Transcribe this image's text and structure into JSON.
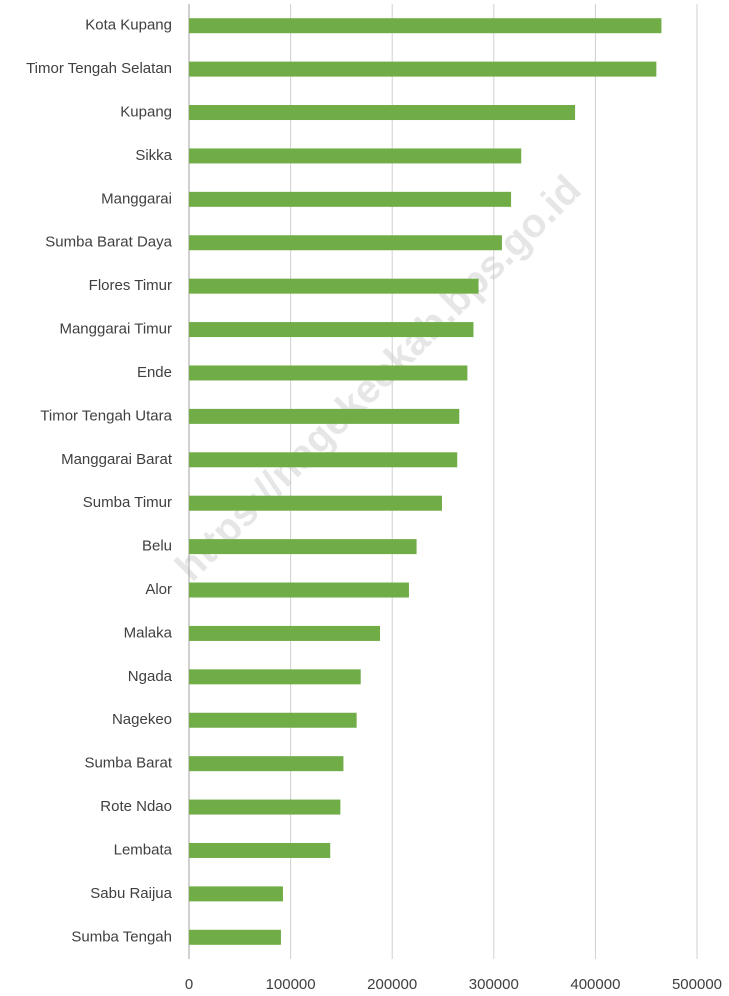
{
  "chart_data": {
    "type": "bar",
    "orientation": "horizontal",
    "watermark": "https://nagekeokab.bps.go.id",
    "categories": [
      "Kota Kupang",
      "Timor Tengah Selatan",
      "Kupang",
      "Sikka",
      "Manggarai",
      "Sumba Barat Daya",
      "Flores Timur",
      "Manggarai Timur",
      "Ende",
      "Timor Tengah Utara",
      "Manggarai Barat",
      "Sumba Timur",
      "Belu",
      "Alor",
      "Malaka",
      "Ngada",
      "Nagekeo",
      "Sumba Barat",
      "Rote Ndao",
      "Lembata",
      "Sabu Raijua",
      "Sumba Tengah"
    ],
    "values": [
      465000,
      460000,
      380000,
      327000,
      317000,
      308000,
      285000,
      280000,
      274000,
      266000,
      264000,
      249000,
      224000,
      216500,
      188000,
      169000,
      165000,
      152000,
      149000,
      139000,
      92500,
      90500
    ],
    "color": "#70ad47",
    "xlim": [
      0,
      520000
    ],
    "xticks": [
      0,
      100000,
      200000,
      300000,
      400000,
      500000
    ],
    "grid": true
  }
}
